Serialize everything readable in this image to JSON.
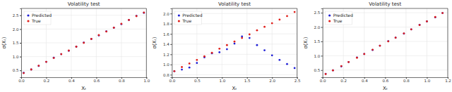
{
  "chart_data": [
    {
      "type": "scatter",
      "title": "Volatility test",
      "x_label": "Xₜ",
      "y_label": "σ(Xₜ)",
      "xlim": [
        0,
        1.0
      ],
      "ylim": [
        0.25,
        2.75
      ],
      "xticks": [
        {
          "value": 0,
          "label": "0.0"
        },
        0.2,
        0.4,
        0.6,
        0.8,
        {
          "value": 1,
          "label": "1.0"
        }
      ],
      "yticks": [
        0.5,
        {
          "value": 1,
          "label": "1.0"
        },
        1.5,
        {
          "value": 2,
          "label": "2.0"
        },
        2.5
      ],
      "grid": true,
      "legend": "upper left",
      "x": [
        0.02,
        0.08,
        0.14,
        0.2,
        0.26,
        0.32,
        0.38,
        0.44,
        0.5,
        0.56,
        0.62,
        0.68,
        0.74,
        0.8,
        0.86,
        0.92,
        0.98
      ],
      "series": [
        {
          "name": "Predicted",
          "color": "#1f1fd6",
          "values": [
            0.41,
            0.53,
            0.66,
            0.81,
            0.96,
            1.09,
            1.21,
            1.36,
            1.51,
            1.64,
            1.77,
            1.92,
            2.05,
            2.18,
            2.33,
            2.48,
            2.59
          ]
        },
        {
          "name": "True",
          "color": "#e0201b",
          "values": [
            0.4,
            0.53,
            0.67,
            0.81,
            0.95,
            1.09,
            1.22,
            1.36,
            1.5,
            1.64,
            1.78,
            1.91,
            2.05,
            2.19,
            2.33,
            2.47,
            2.6
          ]
        }
      ]
    },
    {
      "type": "scatter",
      "title": "Volatility test",
      "x_label": "Xₜ",
      "y_label": "σ(Xₜ)",
      "xlim": [
        0,
        2.5
      ],
      "ylim": [
        0.75,
        2.1
      ],
      "xticks": [
        {
          "value": 0,
          "label": "0.0"
        },
        0.5,
        {
          "value": 1,
          "label": "1.0"
        },
        1.5,
        {
          "value": 2,
          "label": "2.0"
        },
        2.5
      ],
      "yticks": [
        0.8,
        {
          "value": 1,
          "label": "1.0"
        },
        1.2,
        1.4,
        1.6,
        1.8,
        {
          "value": 2,
          "label": "2.0"
        }
      ],
      "grid": true,
      "legend": "upper left",
      "x": [
        0.05,
        0.2,
        0.35,
        0.5,
        0.65,
        0.8,
        0.95,
        1.1,
        1.25,
        1.4,
        1.55,
        1.7,
        1.85,
        2.0,
        2.15,
        2.3,
        2.45
      ],
      "series": [
        {
          "name": "Predicted",
          "color": "#1f1fd6",
          "values": [
            0.87,
            0.9,
            0.94,
            1.03,
            1.14,
            1.22,
            1.24,
            1.3,
            1.41,
            1.55,
            1.52,
            1.38,
            1.28,
            1.18,
            1.09,
            1.01,
            0.93
          ]
        },
        {
          "name": "True",
          "color": "#e0201b",
          "values": [
            0.87,
            0.95,
            1.02,
            1.09,
            1.16,
            1.23,
            1.31,
            1.38,
            1.45,
            1.52,
            1.59,
            1.67,
            1.74,
            1.81,
            1.88,
            1.95,
            2.03
          ]
        }
      ]
    },
    {
      "type": "scatter",
      "title": "Volatility test",
      "x_label": "Xₜ",
      "y_label": "σ(Xₜ)",
      "xlim": [
        0,
        1.2
      ],
      "ylim": [
        0.25,
        2.65
      ],
      "xticks": [
        {
          "value": 0,
          "label": "0.0"
        },
        0.2,
        0.4,
        0.6,
        0.8,
        {
          "value": 1,
          "label": "1.0"
        },
        1.2
      ],
      "yticks": [
        0.5,
        {
          "value": 1,
          "label": "1.0"
        },
        1.5,
        {
          "value": 2,
          "label": "2.0"
        },
        2.5
      ],
      "grid": true,
      "legend": "upper left",
      "x": [
        0.03,
        0.1,
        0.18,
        0.25,
        0.33,
        0.4,
        0.48,
        0.55,
        0.63,
        0.7,
        0.78,
        0.85,
        0.93,
        1.0,
        1.08,
        1.15
      ],
      "series": [
        {
          "name": "Predicted",
          "color": "#1f1fd6",
          "values": [
            0.37,
            0.49,
            0.63,
            0.78,
            0.94,
            1.06,
            1.2,
            1.35,
            1.51,
            1.63,
            1.77,
            1.92,
            2.08,
            2.2,
            2.34,
            2.49
          ]
        },
        {
          "name": "True",
          "color": "#e0201b",
          "values": [
            0.36,
            0.49,
            0.64,
            0.78,
            0.93,
            1.06,
            1.21,
            1.35,
            1.5,
            1.63,
            1.78,
            1.92,
            2.07,
            2.2,
            2.35,
            2.49
          ]
        }
      ]
    }
  ]
}
